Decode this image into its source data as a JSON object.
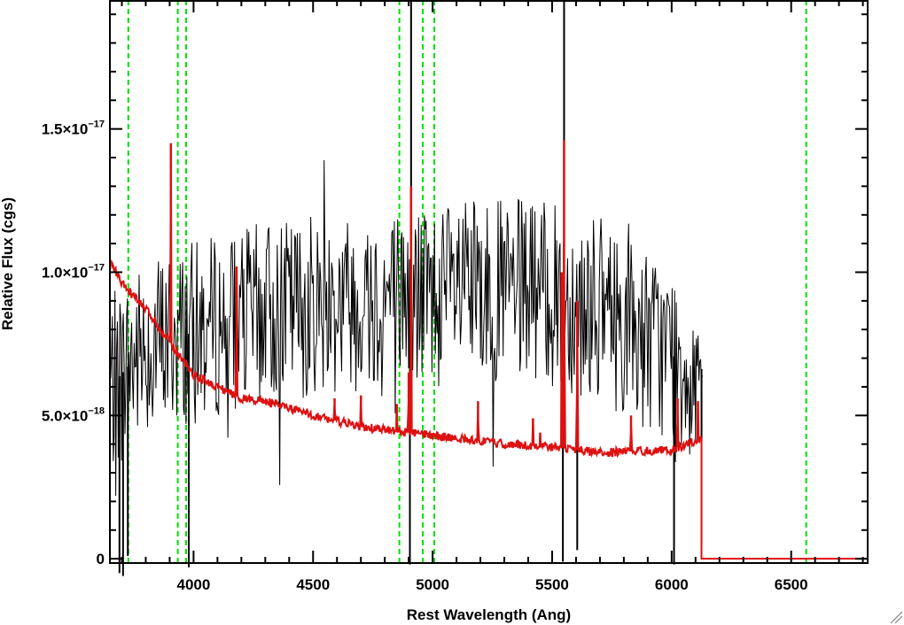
{
  "chart_data": {
    "type": "line",
    "xlabel": "Rest Wavelength (Ang)",
    "ylabel": "Relative Flux (cgs)",
    "xlim": [
      3650,
      6820
    ],
    "ylim": [
      -1.5e-19,
      1.95e-17
    ],
    "x_ticks": [
      {
        "value": 4000,
        "label": "4000"
      },
      {
        "value": 4500,
        "label": "4500"
      },
      {
        "value": 5000,
        "label": "5000"
      },
      {
        "value": 5500,
        "label": "5500"
      },
      {
        "value": 6000,
        "label": "6000"
      },
      {
        "value": 6500,
        "label": "6500"
      }
    ],
    "y_ticks": [
      {
        "value": 0,
        "mant": "0",
        "exp": ""
      },
      {
        "value": 5e-18,
        "mant": "5.0×10",
        "exp": "−18"
      },
      {
        "value": 1e-17,
        "mant": "1.0×10",
        "exp": "−17"
      },
      {
        "value": 1.5e-17,
        "mant": "1.5×10",
        "exp": "−17"
      }
    ],
    "grid": false,
    "vertical_lines": {
      "color": "#00e000",
      "style": "dashed",
      "x": [
        3727,
        3934,
        3969,
        4861,
        4959,
        5007,
        6563
      ]
    },
    "series": [
      {
        "color": "#000000",
        "data_end": 6130,
        "level_points": [
          [
            3650,
            6e-18
          ],
          [
            3800,
            7.4e-18
          ],
          [
            4000,
            7.9e-18
          ],
          [
            4300,
            8.6e-18
          ],
          [
            4600,
            9e-18
          ],
          [
            5000,
            9.2e-18
          ],
          [
            5400,
            9.4e-18
          ],
          [
            5700,
            8.7e-18
          ],
          [
            6000,
            7.1e-18
          ],
          [
            6130,
            6.6e-18
          ]
        ],
        "noise_amplitude": 3.2e-18,
        "step": 3.5,
        "spikes": [
          [
            3690,
            -5e-19
          ],
          [
            3705,
            -6e-19
          ],
          [
            3725,
            1e-19
          ],
          [
            3980,
            -3e-19
          ],
          [
            4910,
            2e-17
          ],
          [
            4905,
            -2e-19
          ],
          [
            5545,
            -1e-19
          ],
          [
            5550,
            2e-17
          ],
          [
            5605,
            3e-19
          ],
          [
            6010,
            -2e-19
          ],
          [
            6125,
            5e-19
          ]
        ]
      },
      {
        "color": "#dd1111",
        "data_end": 6125,
        "continuum_points": [
          [
            3650,
            1.04e-17
          ],
          [
            3700,
            9.6e-18
          ],
          [
            3800,
            8.7e-18
          ],
          [
            3900,
            7.6e-18
          ],
          [
            4000,
            6.4e-18
          ],
          [
            4100,
            6e-18
          ],
          [
            4200,
            5.6e-18
          ],
          [
            4300,
            5.5e-18
          ],
          [
            4500,
            5e-18
          ],
          [
            4700,
            4.6e-18
          ],
          [
            4900,
            4.4e-18
          ],
          [
            5100,
            4.2e-18
          ],
          [
            5300,
            4e-18
          ],
          [
            5500,
            3.9e-18
          ],
          [
            5700,
            3.7e-18
          ],
          [
            6000,
            3.8e-18
          ],
          [
            6125,
            4.2e-18
          ]
        ],
        "emission_lines": [
          [
            3905,
            1.45e-17
          ],
          [
            4180,
            1.02e-17
          ],
          [
            4590,
            5.6e-18
          ],
          [
            4700,
            5.7e-18
          ],
          [
            4850,
            5.4e-18
          ],
          [
            4900,
            6.5e-18
          ],
          [
            4910,
            1.3e-17
          ],
          [
            5190,
            5.5e-18
          ],
          [
            5420,
            4.9e-18
          ],
          [
            5450,
            4.4e-18
          ],
          [
            5540,
            1e-17
          ],
          [
            5550,
            1.46e-17
          ],
          [
            5605,
            9e-18
          ],
          [
            5830,
            5e-18
          ],
          [
            6025,
            5.6e-18
          ],
          [
            6110,
            5.5e-18
          ]
        ],
        "after_end_value": 0,
        "after_end_xmax": 6820
      }
    ]
  }
}
